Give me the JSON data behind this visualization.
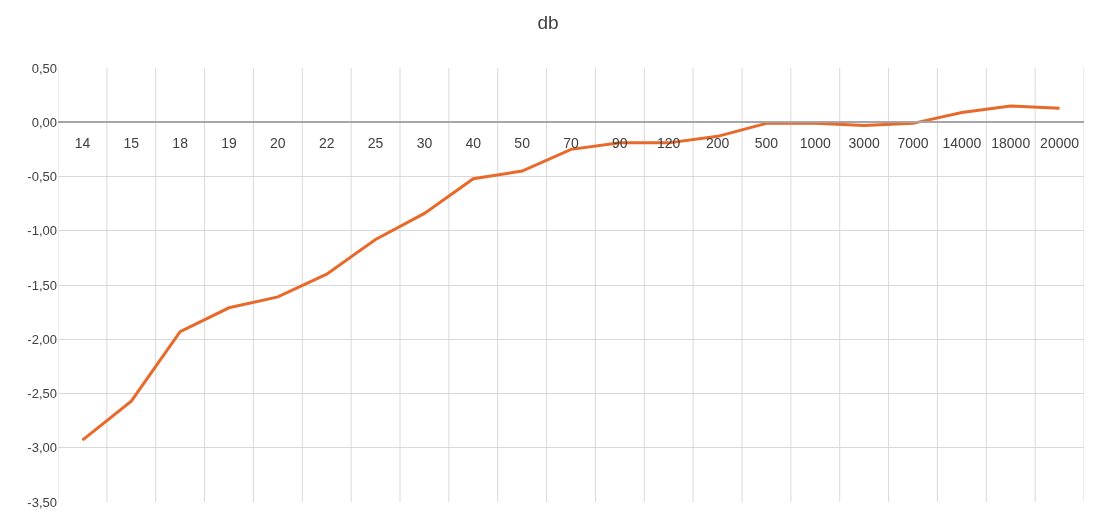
{
  "chart_data": {
    "type": "line",
    "title": "db",
    "categories": [
      "14",
      "15",
      "18",
      "19",
      "20",
      "22",
      "25",
      "30",
      "40",
      "50",
      "70",
      "90",
      "120",
      "200",
      "500",
      "1000",
      "3000",
      "7000",
      "14000",
      "18000",
      "20000"
    ],
    "series": [
      {
        "color": "#e8692a",
        "values": [
          -2.93,
          -2.57,
          -1.93,
          -1.71,
          -1.61,
          -1.4,
          -1.08,
          -0.84,
          -0.52,
          -0.45,
          -0.25,
          -0.19,
          -0.19,
          -0.13,
          -0.01,
          -0.01,
          -0.03,
          -0.01,
          0.09,
          0.15,
          0.13
        ]
      }
    ],
    "ylim": [
      -3.5,
      0.5
    ],
    "yticks": [
      {
        "value": 0.5,
        "label": "0,50"
      },
      {
        "value": 0,
        "label": "0,00"
      },
      {
        "value": -0.5,
        "label": "-0,50"
      },
      {
        "value": -1,
        "label": "-1,00"
      },
      {
        "value": -1.5,
        "label": "-1,50"
      },
      {
        "value": -2,
        "label": "-2,00"
      },
      {
        "value": -2.5,
        "label": "-2,50"
      },
      {
        "value": -3,
        "label": "-3,00"
      },
      {
        "value": -3.5,
        "label": "-3,50"
      }
    ],
    "grid": true,
    "marker": "none",
    "line_style": "solid"
  }
}
